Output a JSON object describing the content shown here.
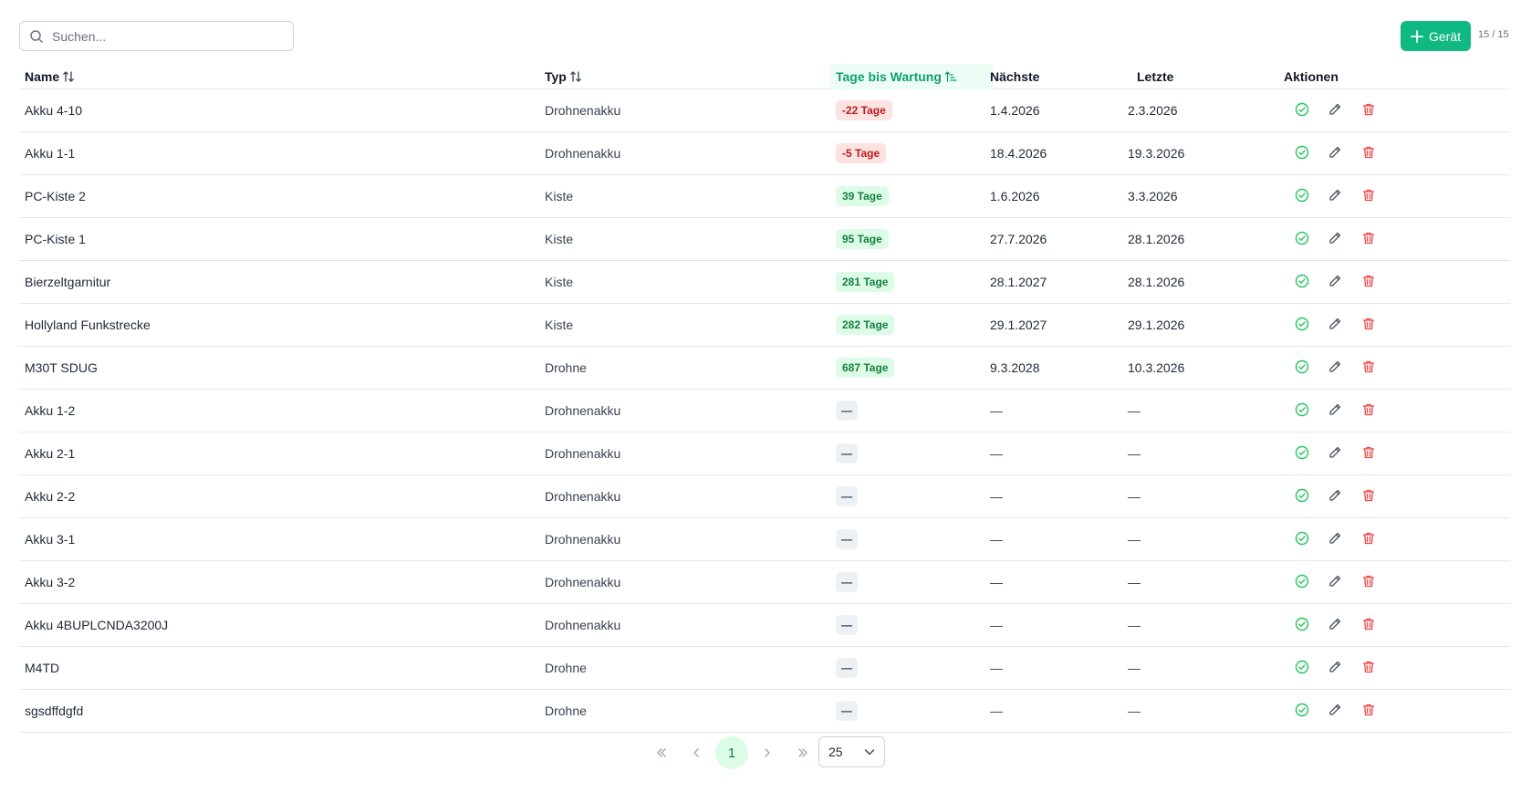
{
  "search": {
    "placeholder": "Suchen...",
    "value": ""
  },
  "toolbar": {
    "add_label": "Gerät",
    "count": "15 / 15"
  },
  "columns": {
    "name": "Name",
    "typ": "Typ",
    "tage": "Tage bis Wartung",
    "naechste": "Nächste",
    "letzte": "Letzte",
    "aktionen": "Aktionen"
  },
  "rows": [
    {
      "name": "Akku 4-10",
      "typ": "Drohnenakku",
      "tage": "-22 Tage",
      "status": "over",
      "naechste": "1.4.2026",
      "letzte": "2.3.2026"
    },
    {
      "name": "Akku 1-1",
      "typ": "Drohnenakku",
      "tage": "-5 Tage",
      "status": "over",
      "naechste": "18.4.2026",
      "letzte": "19.3.2026"
    },
    {
      "name": "PC-Kiste 2",
      "typ": "Kiste",
      "tage": "39 Tage",
      "status": "ok",
      "naechste": "1.6.2026",
      "letzte": "3.3.2026"
    },
    {
      "name": "PC-Kiste 1",
      "typ": "Kiste",
      "tage": "95 Tage",
      "status": "ok",
      "naechste": "27.7.2026",
      "letzte": "28.1.2026"
    },
    {
      "name": "Bierzeltgarnitur",
      "typ": "Kiste",
      "tage": "281 Tage",
      "status": "ok",
      "naechste": "28.1.2027",
      "letzte": "28.1.2026"
    },
    {
      "name": "Hollyland Funkstrecke",
      "typ": "Kiste",
      "tage": "282 Tage",
      "status": "ok",
      "naechste": "29.1.2027",
      "letzte": "29.1.2026"
    },
    {
      "name": "M30T SDUG",
      "typ": "Drohne",
      "tage": "687 Tage",
      "status": "ok",
      "naechste": "9.3.2028",
      "letzte": "10.3.2026"
    },
    {
      "name": "Akku 1-2",
      "typ": "Drohnenakku",
      "tage": "—",
      "status": "none",
      "naechste": "—",
      "letzte": "—"
    },
    {
      "name": "Akku 2-1",
      "typ": "Drohnenakku",
      "tage": "—",
      "status": "none",
      "naechste": "—",
      "letzte": "—"
    },
    {
      "name": "Akku 2-2",
      "typ": "Drohnenakku",
      "tage": "—",
      "status": "none",
      "naechste": "—",
      "letzte": "—"
    },
    {
      "name": "Akku 3-1",
      "typ": "Drohnenakku",
      "tage": "—",
      "status": "none",
      "naechste": "—",
      "letzte": "—"
    },
    {
      "name": "Akku 3-2",
      "typ": "Drohnenakku",
      "tage": "—",
      "status": "none",
      "naechste": "—",
      "letzte": "—"
    },
    {
      "name": "Akku 4BUPLCNDA3200J",
      "typ": "Drohnenakku",
      "tage": "—",
      "status": "none",
      "naechste": "—",
      "letzte": "—"
    },
    {
      "name": "M4TD",
      "typ": "Drohne",
      "tage": "—",
      "status": "none",
      "naechste": "—",
      "letzte": "—"
    },
    {
      "name": "sgsdffdgfd",
      "typ": "Drohne",
      "tage": "—",
      "status": "none",
      "naechste": "—",
      "letzte": "—"
    }
  ],
  "pagination": {
    "current_page": "1",
    "page_size": "25"
  },
  "colors": {
    "accent": "#10b981",
    "danger": "#ef4444",
    "overdue_bg": "#fde2e2",
    "ok_bg": "#dcfce7"
  }
}
